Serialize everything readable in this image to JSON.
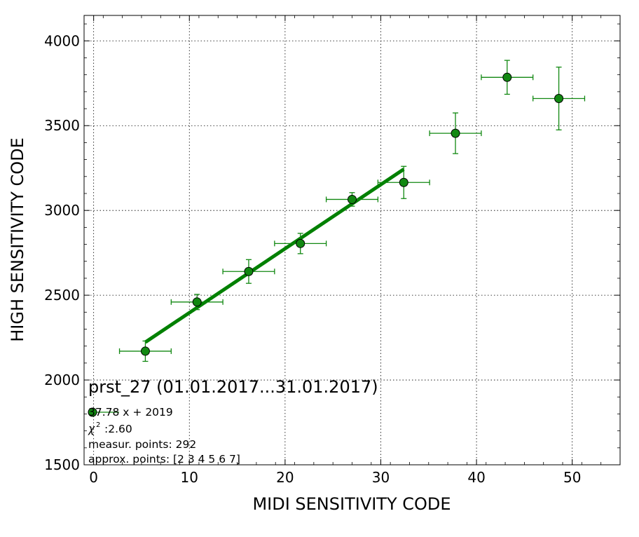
{
  "chart_data": {
    "type": "scatter",
    "title": "prst_27 (01.01.2017...31.01.2017)",
    "xlabel": "MIDI SENSITIVITY CODE",
    "ylabel": "HIGH SENSITIVITY CODE",
    "xlim": [
      -1,
      55
    ],
    "ylim": [
      1500,
      4150
    ],
    "xticks": [
      0,
      10,
      20,
      30,
      40,
      50
    ],
    "yticks": [
      1500,
      2000,
      2500,
      3000,
      3500,
      4000
    ],
    "grid": true,
    "colors": {
      "marker": "#118811",
      "errorbar": "#118811",
      "fit": "#008000"
    },
    "series": [
      {
        "marker": "circle",
        "points": [
          {
            "x": 5.4,
            "y": 2170,
            "xerr": 2.7,
            "yerr": 60
          },
          {
            "x": 10.8,
            "y": 2460,
            "xerr": 2.7,
            "yerr": 45
          },
          {
            "x": 16.2,
            "y": 2640,
            "xerr": 2.7,
            "yerr": 70
          },
          {
            "x": 21.6,
            "y": 2805,
            "xerr": 2.7,
            "yerr": 60
          },
          {
            "x": 27.0,
            "y": 3065,
            "xerr": 2.7,
            "yerr": 40
          },
          {
            "x": 32.4,
            "y": 3165,
            "xerr": 2.7,
            "yerr": 95
          },
          {
            "x": 37.8,
            "y": 3455,
            "xerr": 2.7,
            "yerr": 120
          },
          {
            "x": 43.2,
            "y": 3785,
            "xerr": 2.7,
            "yerr": 100
          },
          {
            "x": 48.6,
            "y": 3660,
            "xerr": 2.7,
            "yerr": 185
          }
        ]
      }
    ],
    "fit_line": {
      "slope": 37.78,
      "intercept": 2019,
      "x_from": 5.4,
      "x_to": 32.4
    },
    "legend": {
      "position": "bottom-left",
      "entries": [
        "37.78 x + 2019",
        ":2.60",
        "measur. points: 292",
        "approx. points: [2 3 4 5 6 7]"
      ]
    }
  }
}
